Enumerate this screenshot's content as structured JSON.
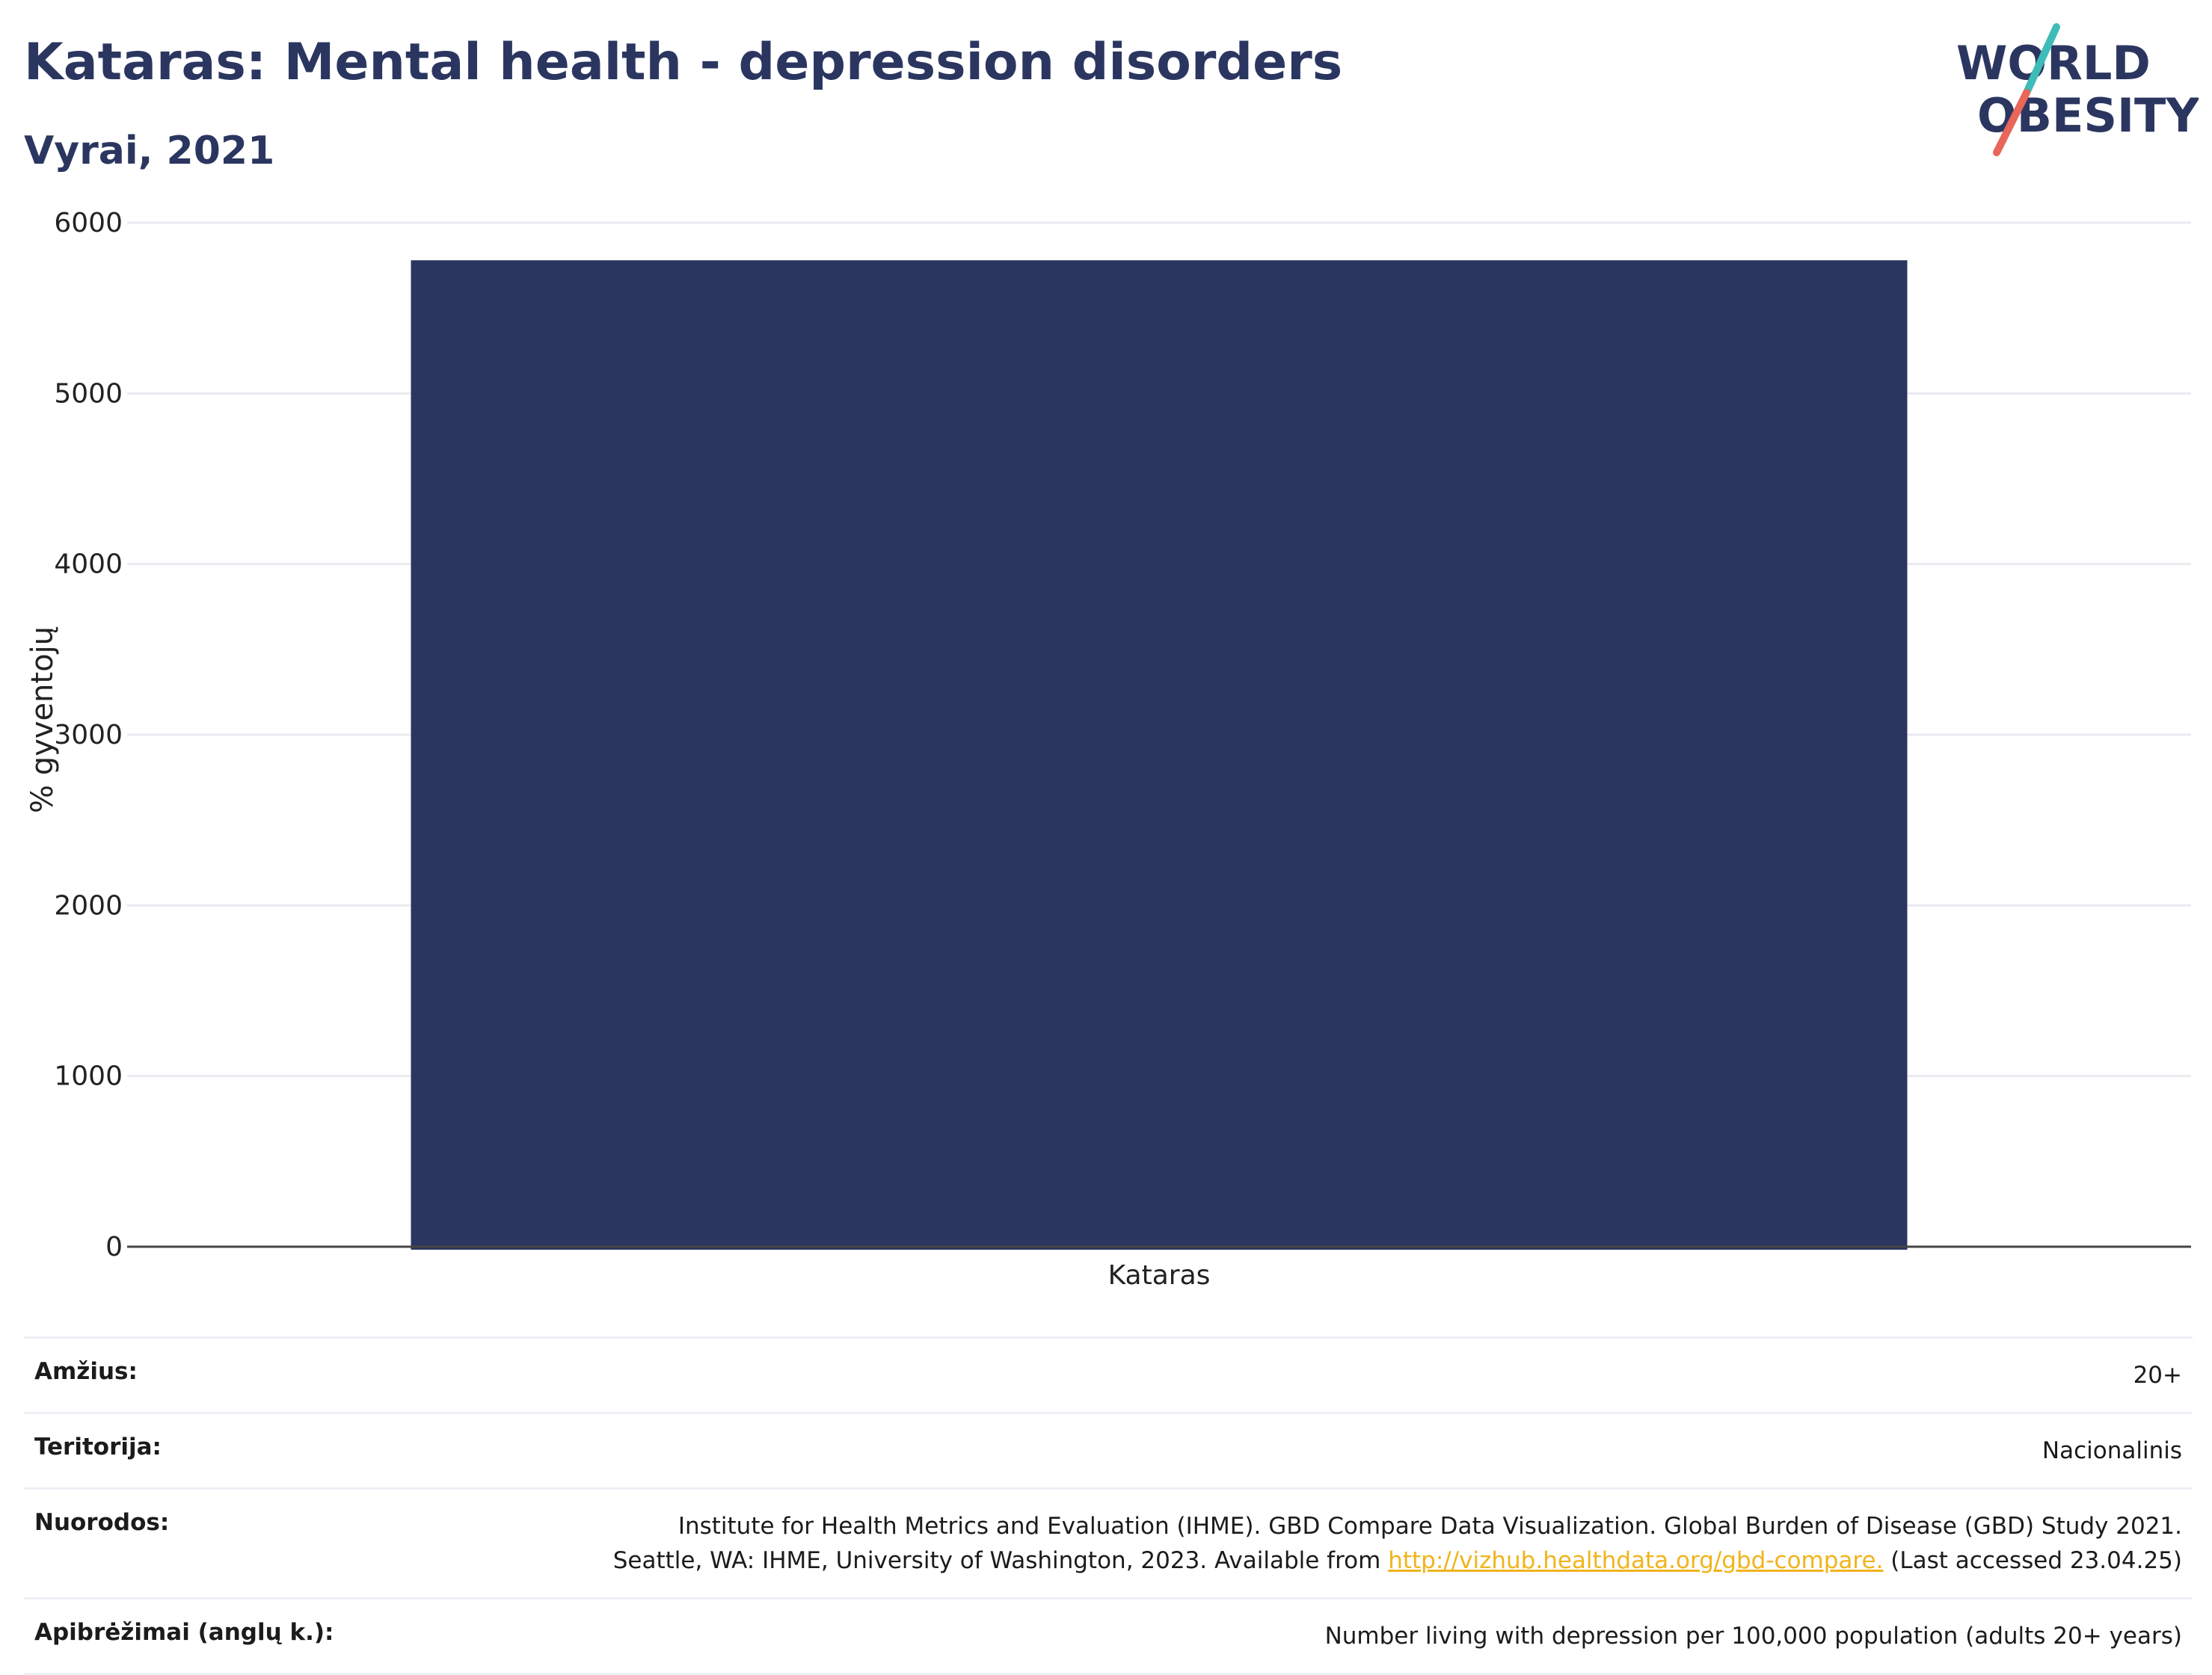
{
  "header": {
    "title": "Kataras: Mental health - depression disorders",
    "subtitle": "Vyrai, 2021"
  },
  "logo": {
    "line1": "WORLD",
    "line2": "OBESITY",
    "colors": {
      "text": "#2b3660",
      "slash_top": "#3dbcb8",
      "slash_bottom": "#e8665a"
    }
  },
  "chart_data": {
    "type": "bar",
    "categories": [
      "Kataras"
    ],
    "values": [
      5780
    ],
    "title": "",
    "xlabel": "",
    "ylabel": "% gyventojų",
    "ylim": [
      0,
      6000
    ],
    "yticks": [
      0,
      1000,
      2000,
      3000,
      4000,
      5000,
      6000
    ],
    "grid": true,
    "bar_color": "#2b3660"
  },
  "info_table": [
    {
      "key": "Amžius:",
      "value": "20+"
    },
    {
      "key": "Teritorija:",
      "value": "Nacionalinis"
    },
    {
      "key": "Nuorodos:",
      "value_line1": "Institute for Health Metrics and Evaluation (IHME). GBD Compare Data Visualization. Global Burden of Disease (GBD) Study 2021.",
      "value_line2_pre": "Seattle, WA: IHME, University of Washington, 2023. Available from ",
      "link_text": "http://vizhub.healthdata.org/gbd-compare.",
      "value_line2_post": " (Last accessed 23.04.25)"
    },
    {
      "key": "Apibrėžimai (anglų k.):",
      "value": "Number living with depression per 100,000 population (adults 20+ years)"
    }
  ]
}
